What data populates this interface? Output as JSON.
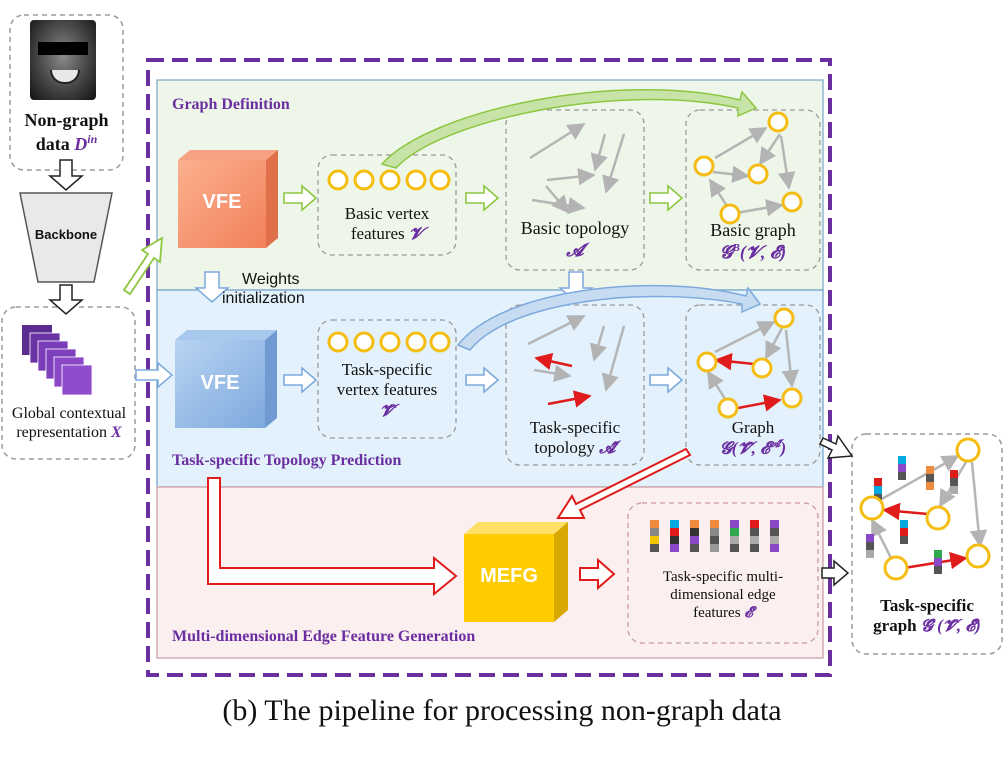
{
  "input": {
    "label_line1": "Non-graph",
    "label_line2": "data",
    "label_math": "D",
    "label_sup": "in",
    "backbone": "Backbone",
    "global_line1": "Global contextual",
    "global_line2": "representation",
    "global_math": "X"
  },
  "sections": {
    "graph_definition": "Graph Definition",
    "topology_prediction": "Task-specific Topology Prediction",
    "edge_feature": "Multi-dimensional Edge Feature Generation"
  },
  "blocks": {
    "vfe_top": "VFE",
    "vfe_mid": "VFE",
    "mefg": "MEFG",
    "weights_line1": "Weights",
    "weights_line2": "initialization"
  },
  "row1": {
    "vertex_line1": "Basic vertex",
    "vertex_line2": "features",
    "vertex_math": "𝓥",
    "topology_line1": "Basic topology",
    "topology_math": "𝓐",
    "graph_line1": "Basic graph",
    "graph_math": "𝓖",
    "graph_sup": "B",
    "graph_args": "(𝓥, 𝓔)"
  },
  "row2": {
    "vertex_line1": "Task-specific",
    "vertex_line2": "vertex features",
    "vertex_math": "𝓥̂",
    "topology_line1": "Task-specific",
    "topology_line2": "topology",
    "topology_math": "𝓐̂",
    "graph_line1": "Graph",
    "graph_math": "𝓖(𝓥̂, 𝓔",
    "graph_sup": "𝓐̂",
    "graph_close": ")"
  },
  "row3": {
    "edge_line1": "Task-specific multi-",
    "edge_line2": "dimensional edge",
    "edge_line3": "features",
    "edge_math": "𝓔̂"
  },
  "output": {
    "line1": "Task-specific",
    "line2": "graph",
    "math": "𝓖̂ (𝓥̂, 𝓔̂)"
  },
  "caption": "(b) The pipeline for processing non-graph data",
  "colors": {
    "purple": "#6a2ea0",
    "green_bg": "#eef6e9",
    "blue_bg": "#e2f1fb",
    "pink_bg": "#fbeff0",
    "node": "#f4bd12",
    "red": "#e01b1b",
    "gray_arrow": "#b5b5b5",
    "green_arrow": "#8dc63f"
  },
  "icons": [
    "face-photo",
    "backbone-trapezoid",
    "feature-stack-icon",
    "vfe-cube",
    "mefg-cube",
    "vertex-circle-icon",
    "edge-feature-bar-icon"
  ]
}
